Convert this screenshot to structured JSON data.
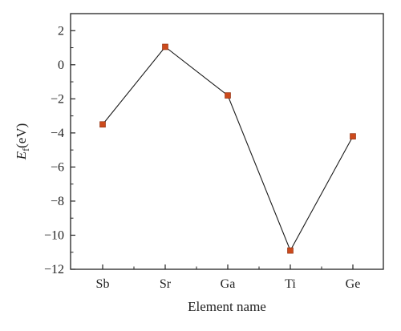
{
  "chart_data": {
    "type": "line",
    "categories": [
      "Sb",
      "Sr",
      "Ga",
      "Ti",
      "Ge"
    ],
    "series": [
      {
        "values": [
          -3.5,
          1.05,
          -1.8,
          -10.9,
          -4.2
        ]
      }
    ],
    "xlabel": "Element name",
    "ylabel": {
      "symbol": "E",
      "subscript": "f",
      "unit": "(eV)"
    },
    "ylim": [
      -12,
      3
    ],
    "yticks": [
      2,
      0,
      -2,
      -4,
      -6,
      -8,
      -10,
      -12
    ],
    "ytick_labels": [
      "2",
      "0",
      "−2",
      "−4",
      "−6",
      "−8",
      "−10",
      "−12"
    ],
    "grid": false,
    "colors": {
      "line": "#1a1a1a",
      "marker": "#cc4a1c",
      "marker_edge": "#8a2a0a",
      "axis": "#222222"
    }
  }
}
